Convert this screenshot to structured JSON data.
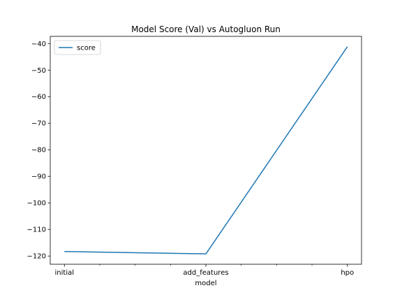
{
  "chart_data": {
    "type": "line",
    "title": "Model Score (Val) vs Autogluon Run",
    "xlabel": "model",
    "ylabel": "",
    "categories": [
      "initial",
      "add_features",
      "hpo"
    ],
    "series": [
      {
        "name": "score",
        "values": [
          -118.3,
          -119.2,
          -41.2
        ]
      }
    ],
    "yticks": [
      -120,
      -110,
      -100,
      -90,
      -80,
      -70,
      -60,
      -50,
      -40
    ],
    "ytick_labels": [
      "−120",
      "−110",
      "−100",
      "−90",
      "−80",
      "−70",
      "−60",
      "−50",
      "−40"
    ],
    "ylim": [
      -123.1,
      -37.3
    ],
    "x_minor_ticks": [
      0.25,
      0.5,
      0.75,
      1.25,
      1.5,
      1.75
    ],
    "grid": false,
    "legend": "top-left",
    "colors": {
      "score": "#1f77b4"
    }
  }
}
